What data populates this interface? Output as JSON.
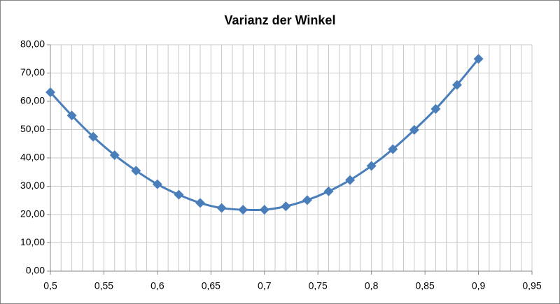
{
  "chart_data": {
    "type": "line",
    "title": "Varianz der Winkel",
    "x": [
      0.5,
      0.52,
      0.54,
      0.56,
      0.58,
      0.6,
      0.62,
      0.64,
      0.66,
      0.68,
      0.7,
      0.72,
      0.74,
      0.76,
      0.78,
      0.8,
      0.82,
      0.84,
      0.86,
      0.88,
      0.9
    ],
    "series": [
      {
        "color": "#4a7ebb",
        "values": [
          63.2,
          55.0,
          47.5,
          41.0,
          35.5,
          30.7,
          27.0,
          24.1,
          22.3,
          21.7,
          21.7,
          22.9,
          25.1,
          28.2,
          32.2,
          37.2,
          43.1,
          49.9,
          57.3,
          65.8,
          75.0
        ]
      }
    ],
    "xlim": [
      0.5,
      0.95
    ],
    "xticks": [
      {
        "value": 0.5,
        "label": "0,5"
      },
      {
        "value": 0.55,
        "label": "0,55"
      },
      {
        "value": 0.6,
        "label": "0,6"
      },
      {
        "value": 0.65,
        "label": "0,65"
      },
      {
        "value": 0.7,
        "label": "0,7"
      },
      {
        "value": 0.75,
        "label": "0,75"
      },
      {
        "value": 0.8,
        "label": "0,8"
      },
      {
        "value": 0.85,
        "label": "0,85"
      },
      {
        "value": 0.9,
        "label": "0,9"
      },
      {
        "value": 0.95,
        "label": "0,95"
      }
    ],
    "ylim": [
      0,
      80
    ],
    "yticks": [
      {
        "value": 0,
        "label": "0,00"
      },
      {
        "value": 10,
        "label": "10,00"
      },
      {
        "value": 20,
        "label": "20,00"
      },
      {
        "value": 30,
        "label": "30,00"
      },
      {
        "value": 40,
        "label": "40,00"
      },
      {
        "value": 50,
        "label": "50,00"
      },
      {
        "value": 60,
        "label": "60,00"
      },
      {
        "value": 70,
        "label": "70,00"
      },
      {
        "value": 80,
        "label": "80,00"
      }
    ],
    "grid": true,
    "x_minor_grid": 0.01,
    "smooth": true,
    "marker": "diamond"
  }
}
